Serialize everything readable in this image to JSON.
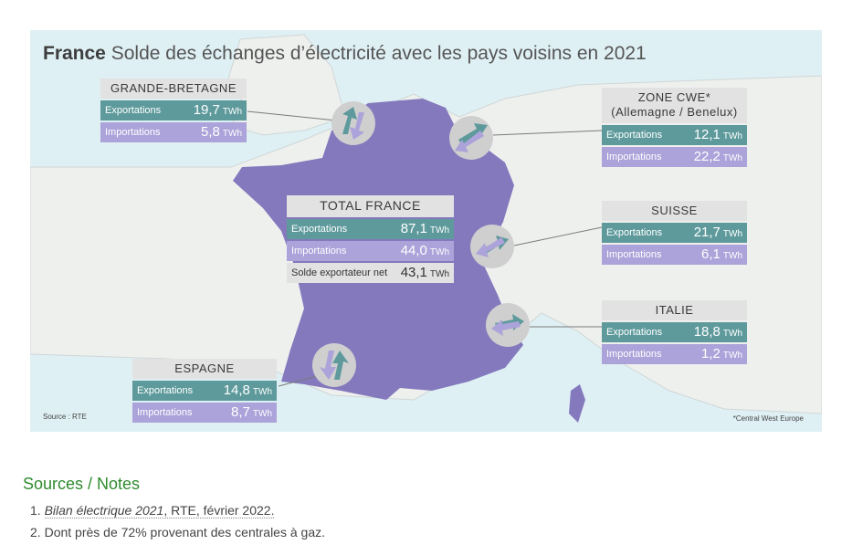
{
  "title": {
    "bold": "France",
    "rest": "Solde des échanges d’électricité avec les pays voisins en 2021"
  },
  "boxes": {
    "gb": {
      "name": "GRANDE-BRETAGNE",
      "exp_label": "Exportations",
      "exp_value": "19,7",
      "imp_label": "Importations",
      "imp_value": "5,8",
      "unit": "TWh"
    },
    "cwe": {
      "name_line1": "ZONE CWE*",
      "name_line2": "(Allemagne / Benelux)",
      "exp_label": "Exportations",
      "exp_value": "12,1",
      "imp_label": "Importations",
      "imp_value": "22,2",
      "unit": "TWh"
    },
    "total": {
      "name": "TOTAL FRANCE",
      "exp_label": "Exportations",
      "exp_value": "87,1",
      "imp_label": "Importations",
      "imp_value": "44,0",
      "net_label": "Solde exportateur net",
      "net_value": "43,1",
      "unit": "TWh"
    },
    "suisse": {
      "name": "SUISSE",
      "exp_label": "Exportations",
      "exp_value": "21,7",
      "imp_label": "Importations",
      "imp_value": "6,1",
      "unit": "TWh"
    },
    "italie": {
      "name": "ITALIE",
      "exp_label": "Exportations",
      "exp_value": "18,8",
      "imp_label": "Importations",
      "imp_value": "1,2",
      "unit": "TWh"
    },
    "espagne": {
      "name": "ESPAGNE",
      "exp_label": "Exportations",
      "exp_value": "14,8",
      "imp_label": "Importations",
      "imp_value": "8,7",
      "unit": "TWh"
    }
  },
  "source": "Source : RTE",
  "footnote": "*Central West Europe",
  "colors": {
    "sea": "#dff0f4",
    "land": "#eef0ee",
    "france": "#8479bd",
    "exports": "#5e9a9c",
    "imports": "#aba3d9",
    "header": "#e2e2e2",
    "sources_title": "#2e8b2e"
  },
  "sources": {
    "title": "Sources / Notes",
    "items": [
      {
        "num": "1.",
        "italic": "Bilan électrique 2021",
        "rest": ", RTE, février 2022."
      },
      {
        "num": "2.",
        "text": "Dont près de 72% provenant des centrales à gaz."
      }
    ]
  }
}
